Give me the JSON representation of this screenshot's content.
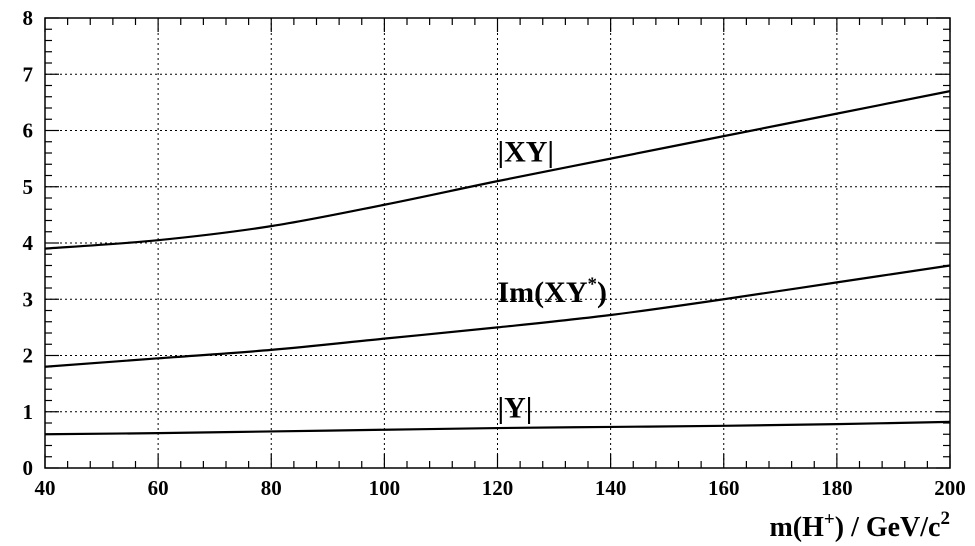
{
  "chart_data": {
    "type": "line",
    "xlabel": {
      "main": "m(H",
      "sup1": "+",
      "mid": ")  /  GeV/c",
      "sup2": "2"
    },
    "xlim": [
      40,
      200
    ],
    "ylim": [
      0,
      8
    ],
    "x_ticks": [
      "40",
      "60",
      "80",
      "100",
      "120",
      "140",
      "160",
      "180",
      "200"
    ],
    "y_ticks": [
      "0",
      "1",
      "2",
      "3",
      "4",
      "5",
      "6",
      "7",
      "8"
    ],
    "grid": true,
    "x": [
      40,
      60,
      80,
      100,
      120,
      140,
      160,
      180,
      200
    ],
    "series": [
      {
        "name": "|XY|",
        "label_parts": {
          "main": "|XY|",
          "sup": "",
          "tail": ""
        },
        "values": [
          3.9,
          4.05,
          4.3,
          4.68,
          5.1,
          5.5,
          5.9,
          6.3,
          6.7
        ],
        "label_at": [
          120,
          5.45
        ]
      },
      {
        "name": "Im(XY*)",
        "label_parts": {
          "main": "Im(XY",
          "sup": "*",
          "tail": ")"
        },
        "values": [
          1.8,
          1.95,
          2.1,
          2.3,
          2.5,
          2.72,
          3.0,
          3.3,
          3.6
        ],
        "label_at": [
          120,
          2.95
        ]
      },
      {
        "name": "|Y|",
        "label_parts": {
          "main": "|Y|",
          "sup": "",
          "tail": ""
        },
        "values": [
          0.6,
          0.62,
          0.65,
          0.68,
          0.71,
          0.73,
          0.75,
          0.78,
          0.82
        ],
        "label_at": [
          120,
          0.9
        ]
      }
    ]
  }
}
